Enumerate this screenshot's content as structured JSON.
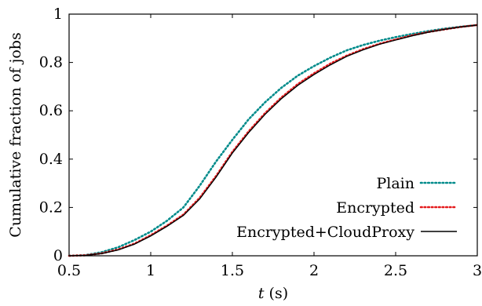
{
  "chart_data": {
    "type": "line",
    "xlabel_var": "t",
    "xlabel_unit": "(s)",
    "ylabel": "Cumulative fraction of jobs",
    "xlim": [
      0.5,
      3
    ],
    "ylim": [
      0,
      1
    ],
    "xticks": [
      0.5,
      1,
      1.5,
      2,
      2.5,
      3
    ],
    "xtick_labels": [
      "0.5",
      "1",
      "1.5",
      "2",
      "2.5",
      "3"
    ],
    "yticks": [
      0,
      0.2,
      0.4,
      0.6,
      0.8,
      1
    ],
    "ytick_labels": [
      "0",
      "0.2",
      "0.4",
      "0.6",
      "0.8",
      "1"
    ],
    "legend_position": "bottom-right",
    "series": [
      {
        "name": "Plain",
        "color": "#008b8b",
        "dash": "dotted",
        "x": [
          0.5,
          0.6,
          0.7,
          0.8,
          0.9,
          1.0,
          1.1,
          1.2,
          1.3,
          1.4,
          1.5,
          1.6,
          1.7,
          1.8,
          1.9,
          2.0,
          2.1,
          2.2,
          2.3,
          2.4,
          2.5,
          2.6,
          2.7,
          2.8,
          2.9,
          3.0
        ],
        "y": [
          0.0,
          0.003,
          0.015,
          0.035,
          0.065,
          0.1,
          0.145,
          0.2,
          0.29,
          0.39,
          0.48,
          0.565,
          0.635,
          0.695,
          0.745,
          0.785,
          0.82,
          0.85,
          0.872,
          0.89,
          0.905,
          0.918,
          0.93,
          0.94,
          0.948,
          0.955
        ]
      },
      {
        "name": "Encrypted",
        "color": "#e41a1c",
        "dash": "dotted",
        "x": [
          0.5,
          0.6,
          0.7,
          0.8,
          0.9,
          1.0,
          1.1,
          1.2,
          1.3,
          1.4,
          1.5,
          1.6,
          1.7,
          1.8,
          1.9,
          2.0,
          2.1,
          2.2,
          2.3,
          2.4,
          2.5,
          2.6,
          2.7,
          2.8,
          2.9,
          3.0
        ],
        "y": [
          0.0,
          0.002,
          0.01,
          0.026,
          0.05,
          0.085,
          0.125,
          0.17,
          0.24,
          0.33,
          0.43,
          0.515,
          0.59,
          0.655,
          0.71,
          0.755,
          0.795,
          0.828,
          0.855,
          0.877,
          0.895,
          0.912,
          0.926,
          0.937,
          0.947,
          0.955
        ]
      },
      {
        "name": "Encrypted+CloudProxy",
        "color": "#000000",
        "dash": "solid",
        "x": [
          0.5,
          0.6,
          0.7,
          0.8,
          0.9,
          1.0,
          1.1,
          1.2,
          1.3,
          1.4,
          1.5,
          1.6,
          1.7,
          1.8,
          1.9,
          2.0,
          2.1,
          2.2,
          2.3,
          2.4,
          2.5,
          2.6,
          2.7,
          2.8,
          2.9,
          3.0
        ],
        "y": [
          0.0,
          0.002,
          0.009,
          0.024,
          0.048,
          0.082,
          0.122,
          0.167,
          0.235,
          0.325,
          0.425,
          0.51,
          0.585,
          0.65,
          0.705,
          0.75,
          0.79,
          0.825,
          0.852,
          0.875,
          0.893,
          0.91,
          0.925,
          0.937,
          0.947,
          0.955
        ]
      }
    ]
  }
}
